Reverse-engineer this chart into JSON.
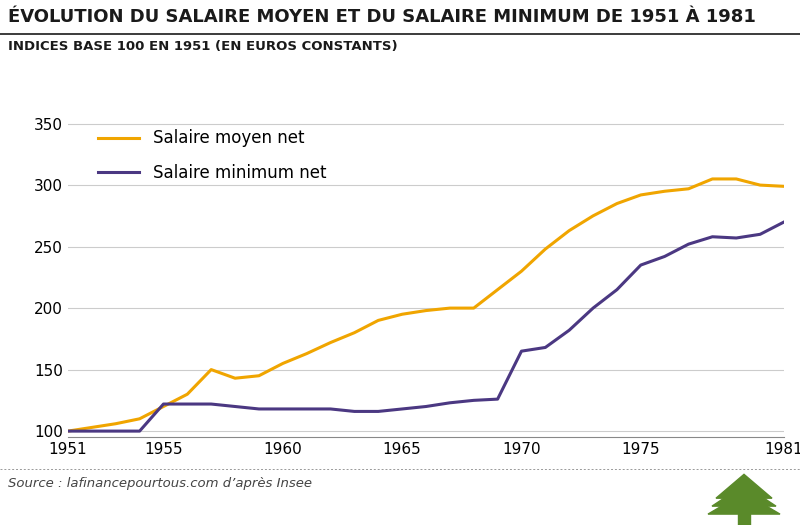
{
  "title": "ÉVOLUTION DU SALAIRE MOYEN ET DU SALAIRE MINIMUM DE 1951 À 1981",
  "subtitle": "INDICES BASE 100 EN 1951 (EN EUROS CONSTANTS)",
  "source": "Source : lafinancepourtous.com d’après Insee",
  "salaire_moyen": {
    "label": "Salaire moyen net",
    "color": "#F0A500",
    "years": [
      1951,
      1952,
      1953,
      1954,
      1955,
      1956,
      1957,
      1958,
      1959,
      1960,
      1961,
      1962,
      1963,
      1964,
      1965,
      1966,
      1967,
      1968,
      1969,
      1970,
      1971,
      1972,
      1973,
      1974,
      1975,
      1976,
      1977,
      1978,
      1979,
      1980,
      1981
    ],
    "values": [
      100,
      103,
      106,
      110,
      120,
      130,
      150,
      143,
      145,
      155,
      163,
      172,
      180,
      190,
      195,
      198,
      200,
      200,
      215,
      230,
      248,
      263,
      275,
      285,
      292,
      295,
      297,
      305,
      305,
      300,
      299
    ]
  },
  "salaire_minimum": {
    "label": "Salaire minimum net",
    "color": "#4B3882",
    "years": [
      1951,
      1952,
      1953,
      1954,
      1955,
      1956,
      1957,
      1958,
      1959,
      1960,
      1961,
      1962,
      1963,
      1964,
      1965,
      1966,
      1967,
      1968,
      1969,
      1970,
      1971,
      1972,
      1973,
      1974,
      1975,
      1976,
      1977,
      1978,
      1979,
      1980,
      1981
    ],
    "values": [
      100,
      100,
      100,
      100,
      122,
      122,
      122,
      120,
      118,
      118,
      118,
      118,
      116,
      116,
      118,
      120,
      123,
      125,
      126,
      165,
      168,
      182,
      200,
      215,
      235,
      242,
      252,
      258,
      257,
      260,
      270
    ]
  },
  "xlim": [
    1951,
    1981
  ],
  "ylim": [
    95,
    360
  ],
  "yticks": [
    100,
    150,
    200,
    250,
    300,
    350
  ],
  "xticks": [
    1951,
    1955,
    1960,
    1965,
    1970,
    1975,
    1981
  ],
  "background_color": "#FFFFFF",
  "plot_bg_color": "#FFFFFF",
  "grid_color": "#CCCCCC",
  "title_fontsize": 13.0,
  "subtitle_fontsize": 9.5,
  "line_width": 2.2,
  "legend_fontsize": 12,
  "tick_fontsize": 11,
  "source_fontsize": 9.5,
  "title_color": "#1a1a1a",
  "subtitle_color": "#1a1a1a",
  "separator_color": "#1a1a1a",
  "bottom_sep_color": "#999999"
}
